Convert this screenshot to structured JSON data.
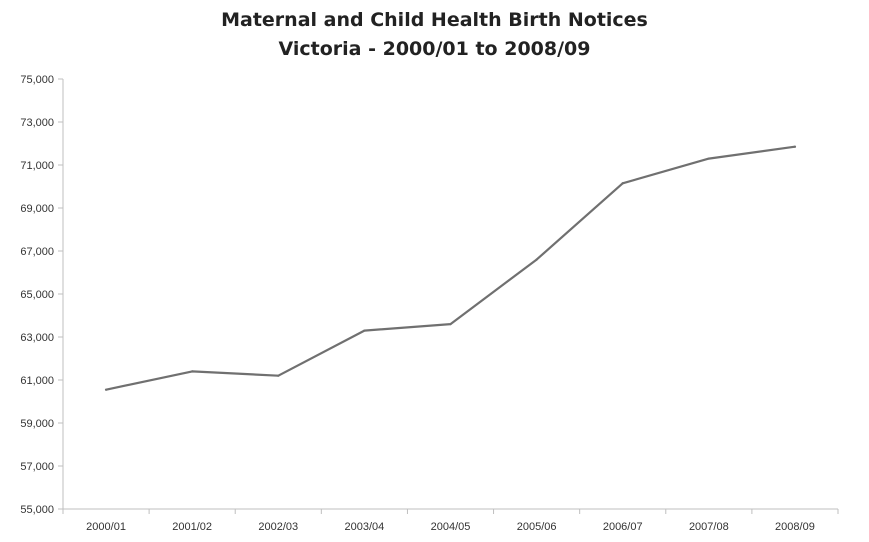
{
  "chart_data": {
    "type": "line",
    "title": "Maternal and Child Health Birth Notices",
    "subtitle": "Victoria - 2000/01 to 2008/09",
    "xlabel": "",
    "ylabel": "",
    "categories": [
      "2000/01",
      "2001/02",
      "2002/03",
      "2003/04",
      "2004/05",
      "2005/06",
      "2006/07",
      "2007/08",
      "2008/09"
    ],
    "series": [
      {
        "values": [
          60550,
          61400,
          61200,
          63300,
          63600,
          66600,
          70150,
          71300,
          71850
        ]
      }
    ],
    "ylim": [
      55000,
      75000
    ],
    "yticks": [
      55000,
      57000,
      59000,
      61000,
      63000,
      65000,
      67000,
      69000,
      71000,
      73000,
      75000
    ],
    "ytick_labels": [
      "55,000",
      "57,000",
      "59,000",
      "61,000",
      "63,000",
      "65,000",
      "67,000",
      "69,000",
      "71,000",
      "73,000",
      "75,000"
    ],
    "grid": false,
    "legend": "none",
    "colors": {
      "line": "#707070",
      "axis": "#bfbfbf"
    }
  }
}
